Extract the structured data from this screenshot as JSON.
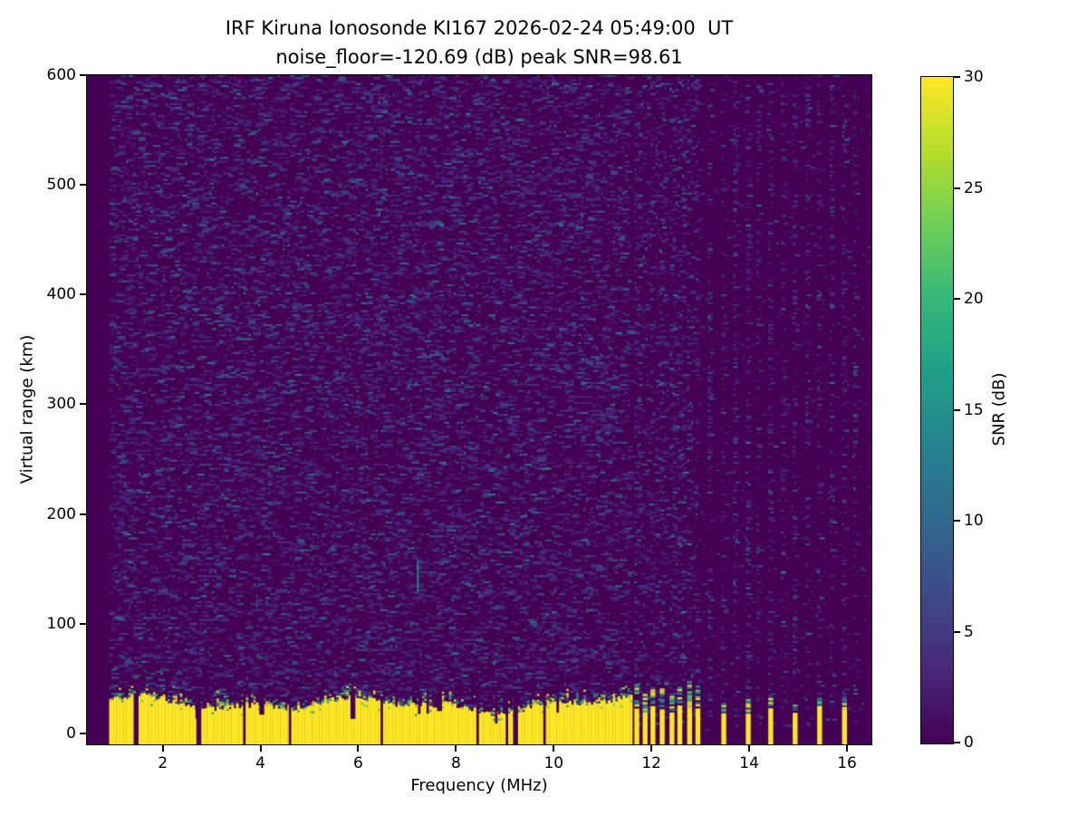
{
  "chart_data": {
    "type": "heatmap",
    "title": "IRF Kiruna Ionosonde KI167 2026-02-24 05:49:00  UT",
    "subtitle": "noise_floor=-120.69 (dB) peak SNR=98.61",
    "station": "IRF Kiruna Ionosonde KI167",
    "timestamp_ut": "2026-02-24 05:49:00",
    "noise_floor_db": -120.69,
    "peak_snr_db": 98.61,
    "xlabel": "Frequency (MHz)",
    "ylabel": "Virtual range (km)",
    "xlim": [
      0.45,
      16.5
    ],
    "ylim": [
      -10,
      600
    ],
    "xticks": [
      2,
      4,
      6,
      8,
      10,
      12,
      14,
      16
    ],
    "yticks": [
      0,
      100,
      200,
      300,
      400,
      500,
      600
    ],
    "grid": false,
    "colorbar": {
      "label": "SNR (dB)",
      "min": 0,
      "max": 30,
      "ticks": [
        0,
        5,
        10,
        15,
        20,
        25,
        30
      ],
      "colormap": "viridis",
      "gradient_stops": [
        "#440154",
        "#482878",
        "#3e4989",
        "#31688e",
        "#26828e",
        "#1f9e89",
        "#35b779",
        "#6ece58",
        "#b5de2b",
        "#fde725"
      ]
    },
    "colors": {
      "background_zero_snr": "#440154",
      "saturated_max_snr": "#fde725",
      "noise_speckle_blue": "#3b518b",
      "transition_teal": "#21918c",
      "transition_green": "#5ec962"
    },
    "features": {
      "sweep_start_mhz": 0.9,
      "continuous_sweep_end_mhz": 11.6,
      "sweep_end_mhz": 16.4,
      "ground_clutter": {
        "freq_range_mhz": [
          0.9,
          11.6
        ],
        "top_km_typical": 30,
        "snr_db": 30
      },
      "discrete_tx_freqs_mhz": [
        11.7,
        11.87,
        12.03,
        12.22,
        12.42,
        12.58,
        12.78,
        12.95,
        13.48,
        13.98,
        14.44,
        14.94,
        15.44,
        15.95
      ],
      "noise_stripe_freqs_mhz": [
        11.78,
        11.95,
        12.13,
        12.31,
        12.49,
        12.67,
        12.86,
        13.2,
        13.72,
        14.2,
        14.7,
        15.2,
        15.7,
        16.18
      ],
      "minor_echo": {
        "freq_mhz": 7.2,
        "range_km": [
          128,
          158
        ]
      }
    }
  }
}
